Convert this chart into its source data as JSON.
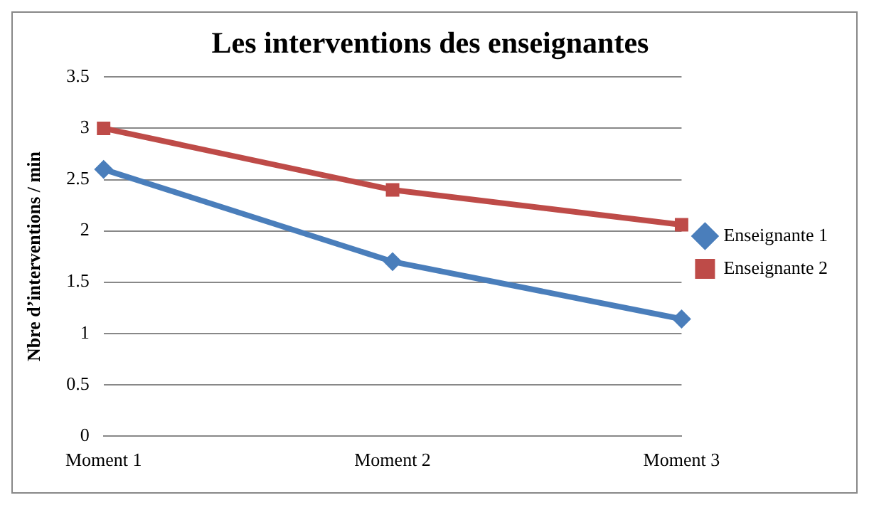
{
  "chart_data": {
    "type": "line",
    "title": "Les interventions des enseignantes",
    "ylabel": "Nbre d’interventions / min",
    "categories": [
      "Moment 1",
      "Moment 2",
      "Moment 3"
    ],
    "series": [
      {
        "name": "Enseignante 1",
        "color": "#4a7ebb",
        "values": [
          2.6,
          1.7,
          1.14
        ],
        "marker": "diamond"
      },
      {
        "name": "Enseignante 2",
        "color": "#be4b48",
        "values": [
          3.0,
          2.4,
          2.06
        ],
        "marker": "square"
      }
    ],
    "ylim": [
      0,
      3.5
    ],
    "yticks": [
      0,
      0.5,
      1,
      1.5,
      2,
      2.5,
      3,
      3.5
    ],
    "grid": "y",
    "legend": "right"
  }
}
